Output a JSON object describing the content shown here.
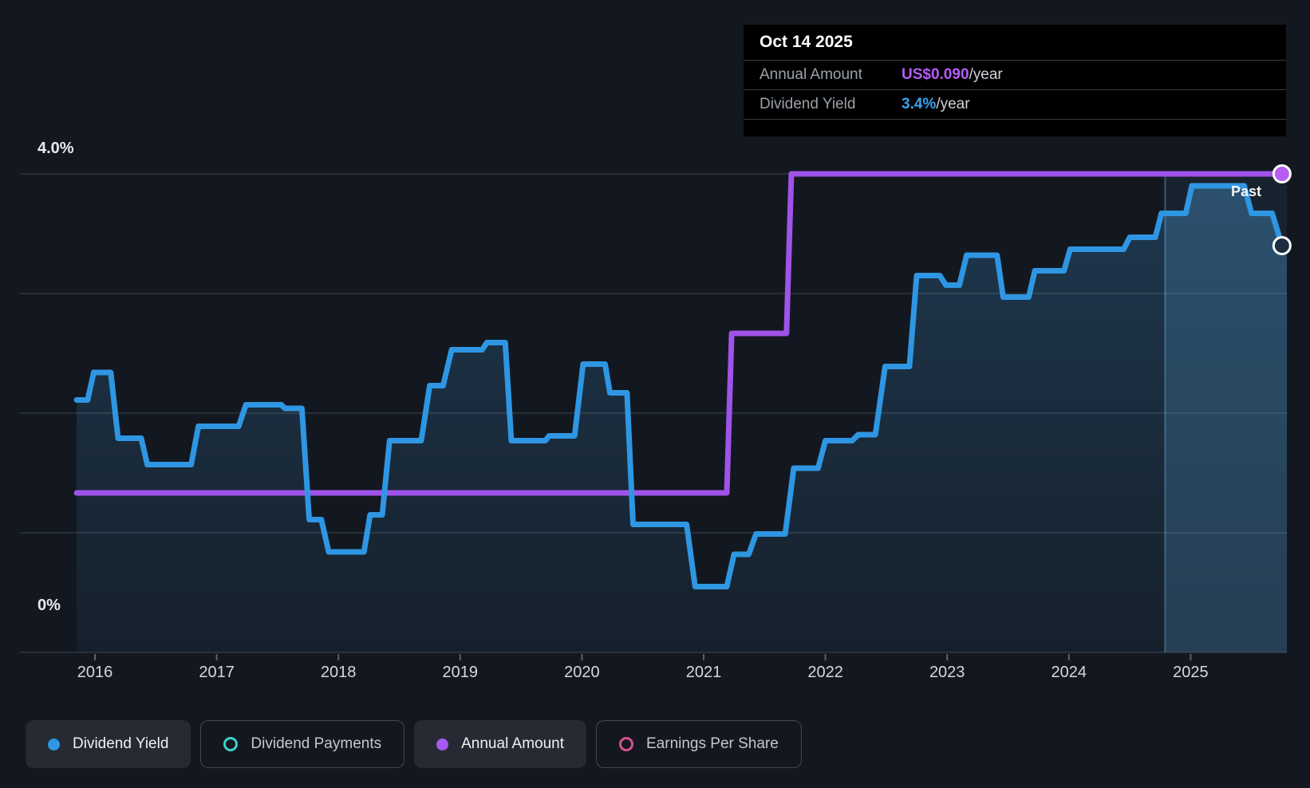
{
  "tooltip": {
    "date": "Oct 14 2025",
    "rows": [
      {
        "label": "Annual Amount",
        "value": "US$0.090",
        "suffix": "/year",
        "value_color": "#b55cf6"
      },
      {
        "label": "Dividend Yield",
        "value": "3.4%",
        "suffix": "/year",
        "value_color": "#35a4f4"
      }
    ]
  },
  "axis": {
    "y_top_label": "4.0%",
    "y_bottom_label": "0%"
  },
  "past_label": "Past",
  "legend": {
    "items": [
      {
        "label": "Dividend Yield",
        "style": "filled",
        "color": "#2e96e2"
      },
      {
        "label": "Dividend Payments",
        "style": "outlined",
        "color": "#3ed2c8"
      },
      {
        "label": "Annual Amount",
        "style": "filled",
        "color": "#a55bf0"
      },
      {
        "label": "Earnings Per Share",
        "style": "outlined",
        "color": "#d94f8c"
      }
    ]
  },
  "chart_data": {
    "type": "line",
    "title": "",
    "x": {
      "tick_years": [
        2016,
        2017,
        2018,
        2019,
        2020,
        2021,
        2022,
        2023,
        2024,
        2025
      ],
      "range": [
        2015.85,
        2025.79
      ]
    },
    "y": {
      "unit": "%",
      "range": [
        0,
        4
      ],
      "gridlines_pct": [
        0,
        1,
        2,
        3,
        4
      ],
      "top_label": "4.0%",
      "bottom_label": "0%"
    },
    "past_divider_year": 2024.79,
    "series": [
      {
        "name": "Dividend Yield",
        "type": "step-line",
        "unit": "%",
        "color": "#2e96e2",
        "points": [
          [
            2015.85,
            2.11
          ],
          [
            2015.94,
            2.11
          ],
          [
            2015.99,
            2.34
          ],
          [
            2016.13,
            2.34
          ],
          [
            2016.19,
            1.79
          ],
          [
            2016.38,
            1.79
          ],
          [
            2016.43,
            1.57
          ],
          [
            2016.79,
            1.57
          ],
          [
            2016.85,
            1.89
          ],
          [
            2017.18,
            1.89
          ],
          [
            2017.24,
            2.07
          ],
          [
            2017.53,
            2.07
          ],
          [
            2017.56,
            2.04
          ],
          [
            2017.7,
            2.04
          ],
          [
            2017.76,
            1.11
          ],
          [
            2017.86,
            1.11
          ],
          [
            2017.92,
            0.84
          ],
          [
            2018.21,
            0.84
          ],
          [
            2018.26,
            1.15
          ],
          [
            2018.36,
            1.15
          ],
          [
            2018.42,
            1.77
          ],
          [
            2018.68,
            1.77
          ],
          [
            2018.75,
            2.23
          ],
          [
            2018.86,
            2.23
          ],
          [
            2018.93,
            2.53
          ],
          [
            2019.18,
            2.53
          ],
          [
            2019.22,
            2.59
          ],
          [
            2019.37,
            2.59
          ],
          [
            2019.42,
            1.77
          ],
          [
            2019.7,
            1.77
          ],
          [
            2019.73,
            1.81
          ],
          [
            2019.94,
            1.81
          ],
          [
            2020.01,
            2.41
          ],
          [
            2020.19,
            2.41
          ],
          [
            2020.23,
            2.17
          ],
          [
            2020.37,
            2.17
          ],
          [
            2020.42,
            1.07
          ],
          [
            2020.86,
            1.07
          ],
          [
            2020.93,
            0.55
          ],
          [
            2021.19,
            0.55
          ],
          [
            2021.25,
            0.82
          ],
          [
            2021.37,
            0.82
          ],
          [
            2021.43,
            0.99
          ],
          [
            2021.67,
            0.99
          ],
          [
            2021.74,
            1.54
          ],
          [
            2021.94,
            1.54
          ],
          [
            2022.0,
            1.77
          ],
          [
            2022.22,
            1.77
          ],
          [
            2022.27,
            1.82
          ],
          [
            2022.41,
            1.82
          ],
          [
            2022.49,
            2.39
          ],
          [
            2022.69,
            2.39
          ],
          [
            2022.75,
            3.15
          ],
          [
            2022.94,
            3.15
          ],
          [
            2022.99,
            3.07
          ],
          [
            2023.1,
            3.07
          ],
          [
            2023.16,
            3.32
          ],
          [
            2023.41,
            3.32
          ],
          [
            2023.46,
            2.97
          ],
          [
            2023.67,
            2.97
          ],
          [
            2023.72,
            3.19
          ],
          [
            2023.96,
            3.19
          ],
          [
            2024.01,
            3.37
          ],
          [
            2024.45,
            3.37
          ],
          [
            2024.5,
            3.47
          ],
          [
            2024.71,
            3.47
          ],
          [
            2024.76,
            3.67
          ],
          [
            2024.96,
            3.67
          ],
          [
            2025.01,
            3.9
          ],
          [
            2025.44,
            3.9
          ],
          [
            2025.5,
            3.67
          ],
          [
            2025.67,
            3.67
          ],
          [
            2025.75,
            3.4
          ]
        ]
      },
      {
        "name": "Annual Amount",
        "type": "step-line",
        "unit": "US$ per share/year",
        "color": "#9f53e9",
        "scale_max": 0.09,
        "axis_note": "US$0.090 aligns with the 4.0% gridline",
        "points": [
          [
            2015.85,
            0.03
          ],
          [
            2021.19,
            0.03
          ],
          [
            2021.23,
            0.06
          ],
          [
            2021.68,
            0.06
          ],
          [
            2021.72,
            0.09
          ],
          [
            2025.75,
            0.09
          ]
        ]
      }
    ],
    "end_markers": [
      {
        "series": "Annual Amount",
        "year": 2025.75,
        "value": 0.09
      },
      {
        "series": "Dividend Yield",
        "year": 2025.75,
        "value": 3.4
      }
    ]
  }
}
